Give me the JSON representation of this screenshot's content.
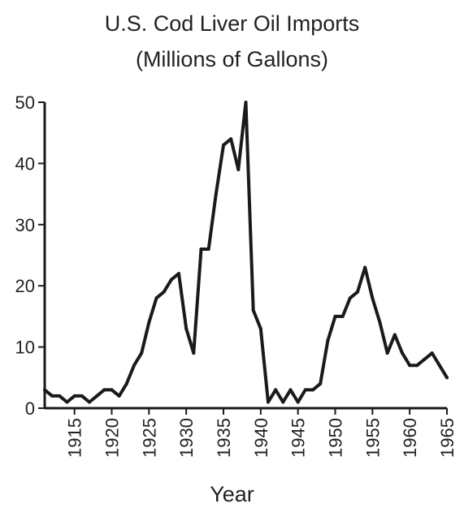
{
  "chart_data": {
    "type": "line",
    "title": "U.S. Cod Liver Oil Imports",
    "subtitle": "(Millions of Gallons)",
    "xlabel": "Year",
    "ylabel": "",
    "xlim": [
      1911,
      1965
    ],
    "ylim": [
      0,
      50
    ],
    "x_ticks": [
      1915,
      1920,
      1925,
      1930,
      1935,
      1940,
      1945,
      1950,
      1955,
      1960,
      1965
    ],
    "y_ticks": [
      0,
      10,
      20,
      30,
      40,
      50
    ],
    "grid": false,
    "line_color": "#1a1a1a",
    "series": [
      {
        "x": [
          1911,
          1912,
          1913,
          1914,
          1915,
          1916,
          1917,
          1918,
          1919,
          1920,
          1921,
          1922,
          1923,
          1924,
          1925,
          1926,
          1927,
          1928,
          1929,
          1930,
          1931,
          1932,
          1933,
          1934,
          1935,
          1936,
          1937,
          1938,
          1939,
          1940,
          1941,
          1942,
          1943,
          1944,
          1945,
          1946,
          1947,
          1948,
          1949,
          1950,
          1951,
          1952,
          1953,
          1954,
          1955,
          1956,
          1957,
          1958,
          1959,
          1960,
          1961,
          1962,
          1963,
          1964,
          1965
        ],
        "y": [
          3,
          2,
          2,
          1,
          2,
          2,
          1,
          2,
          3,
          3,
          2,
          4,
          7,
          9,
          14,
          18,
          19,
          21,
          22,
          13,
          9,
          26,
          26,
          35,
          43,
          44,
          39,
          50,
          16,
          13,
          1,
          3,
          1,
          3,
          1,
          3,
          3,
          4,
          11,
          15,
          15,
          18,
          19,
          23,
          18,
          14,
          9,
          12,
          9,
          7,
          7,
          8,
          9,
          7,
          5
        ]
      }
    ]
  }
}
